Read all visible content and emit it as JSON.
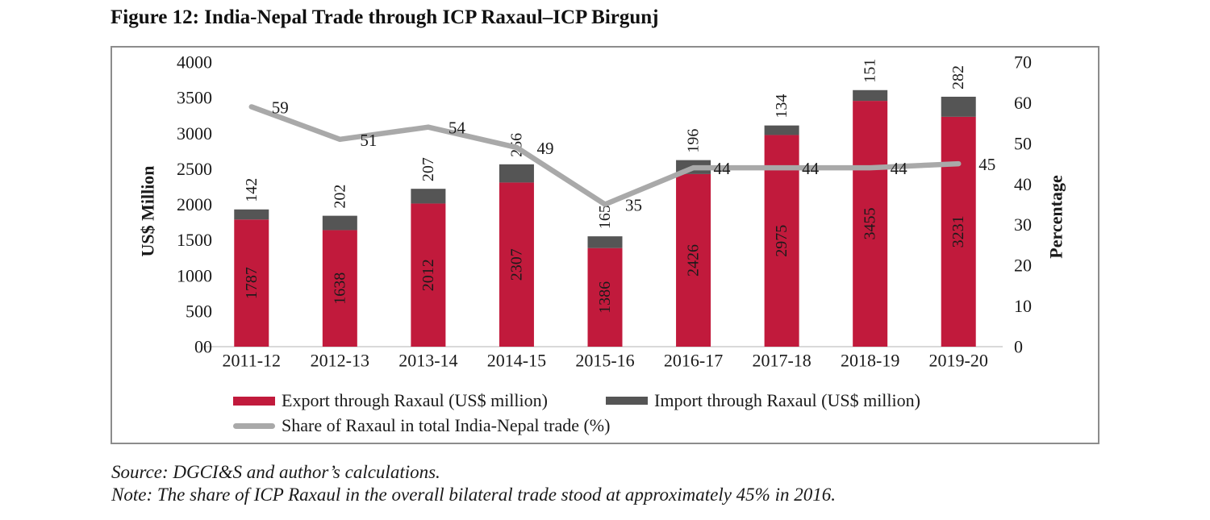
{
  "figure": {
    "title": "Figure 12: India-Nepal Trade through ICP Raxaul–ICP Birgunj",
    "source": "Source: DGCI&S and author’s calculations.",
    "note": "Note: The share of ICP Raxaul in the overall bilateral trade stood at approximately 45% in 2016."
  },
  "colors": {
    "export_bar": "#c11a3c",
    "import_bar": "#555555",
    "share_line": "#a9a9a9",
    "axis_line": "#d9d9d9",
    "frame_border": "#8c8c8c",
    "text": "#1a1a1a",
    "bar_label_light": "#ffffff"
  },
  "chart_data": {
    "type": "stacked-bar+line",
    "categories": [
      "2011-12",
      "2012-13",
      "2013-14",
      "2014-15",
      "2015-16",
      "2016-17",
      "2017-18",
      "2018-19",
      "2019-20"
    ],
    "series": [
      {
        "name": "Export through Raxaul (US$ million)",
        "type": "bar",
        "axis": "left",
        "values": [
          1787,
          1638,
          2012,
          2307,
          1386,
          2426,
          2975,
          3455,
          3231
        ]
      },
      {
        "name": "Import through Raxaul (US$ million)",
        "type": "bar",
        "axis": "left",
        "values": [
          142,
          202,
          207,
          256,
          165,
          196,
          134,
          151,
          282
        ]
      },
      {
        "name": "Share of Raxaul in total India-Nepal trade (%)",
        "type": "line",
        "axis": "right",
        "values": [
          59,
          51,
          54,
          49,
          35,
          44,
          44,
          44,
          45
        ]
      }
    ],
    "left_axis": {
      "title": "US$ Million",
      "min": 0,
      "max": 4000,
      "ticks": [
        {
          "value": 4000,
          "label": "4000"
        },
        {
          "value": 3500,
          "label": "3500"
        },
        {
          "value": 3000,
          "label": "3000"
        },
        {
          "value": 2500,
          "label": "2500"
        },
        {
          "value": 2000,
          "label": "2000"
        },
        {
          "value": 1500,
          "label": "1500"
        },
        {
          "value": 1000,
          "label": "1000"
        },
        {
          "value": 500,
          "label": "500"
        },
        {
          "value": 0,
          "label": "00"
        }
      ]
    },
    "right_axis": {
      "title": "Percentage",
      "min": 0,
      "max": 70,
      "ticks": [
        {
          "value": 70,
          "label": "70"
        },
        {
          "value": 60,
          "label": "60"
        },
        {
          "value": 50,
          "label": "50"
        },
        {
          "value": 40,
          "label": "40"
        },
        {
          "value": 30,
          "label": "30"
        },
        {
          "value": 20,
          "label": "20"
        },
        {
          "value": 10,
          "label": "10"
        },
        {
          "value": 0,
          "label": "0"
        }
      ]
    },
    "grid": "off",
    "legend_position": "bottom"
  }
}
